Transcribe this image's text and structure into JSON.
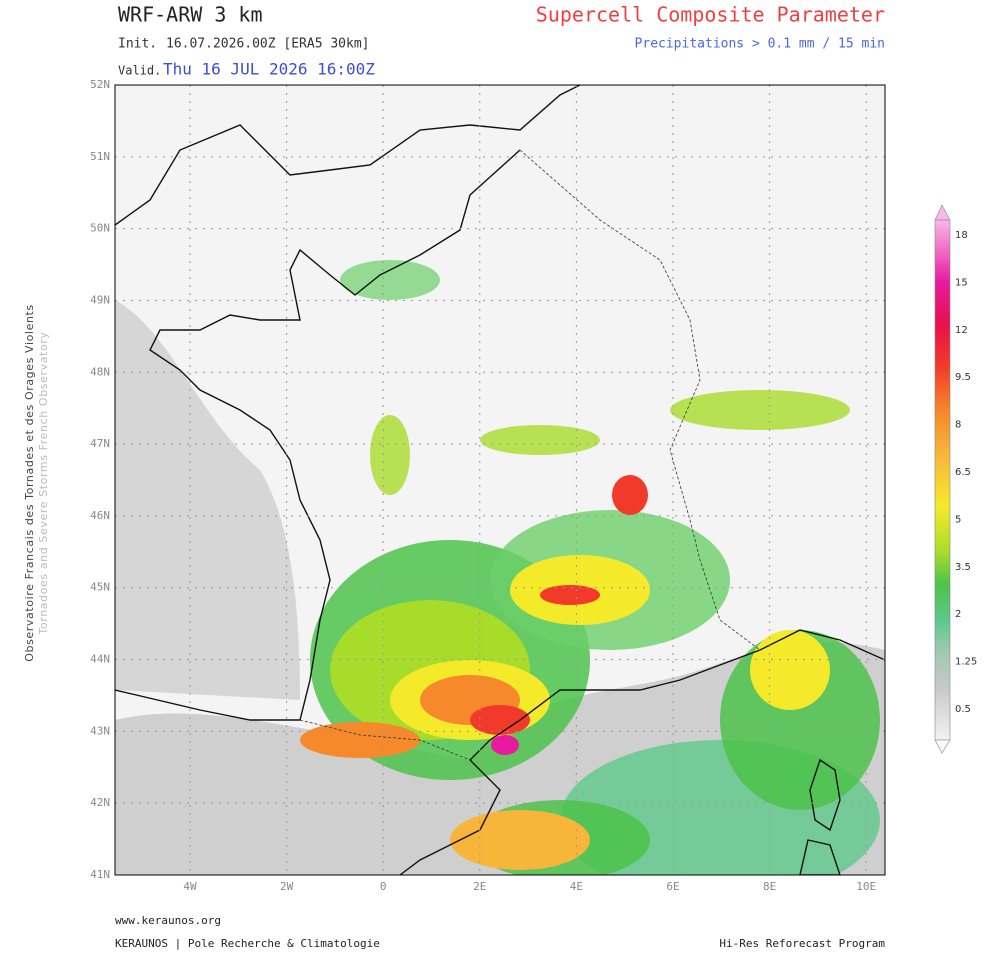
{
  "header": {
    "model": "WRF-ARW 3 km",
    "init_label": "Init.",
    "init": "16.07.2026.00Z [ERA5 30km]",
    "valid_label": "Valid.",
    "valid": "Thu 16 JUL 2026 16:00Z",
    "title": "Supercell Composite Parameter",
    "subtitle": "Precipitations > 0.1 mm / 15 min"
  },
  "map": {
    "lat_labels": [
      "52N",
      "51N",
      "50N",
      "49N",
      "48N",
      "47N",
      "46N",
      "45N",
      "44N",
      "43N",
      "42N",
      "41N"
    ],
    "lon_labels": [
      "4W",
      "2W",
      "0",
      "2E",
      "4E",
      "6E",
      "8E",
      "10E"
    ]
  },
  "colorbar": {
    "labels": [
      "18",
      "15",
      "12",
      "9.5",
      "8",
      "6.5",
      "5",
      "3.5",
      "2",
      "1.25",
      "0.5"
    ]
  },
  "side": {
    "line1": "Observatoire Francais des Tornades et des Orages Violents",
    "line2": "Tornadoes and Severe Storms French Observatory"
  },
  "footer": {
    "url": "www.keraunos.org",
    "org": "KERAUNOS | Pole Recherche & Climatologie",
    "program": "Hi-Res Reforecast Program"
  }
}
